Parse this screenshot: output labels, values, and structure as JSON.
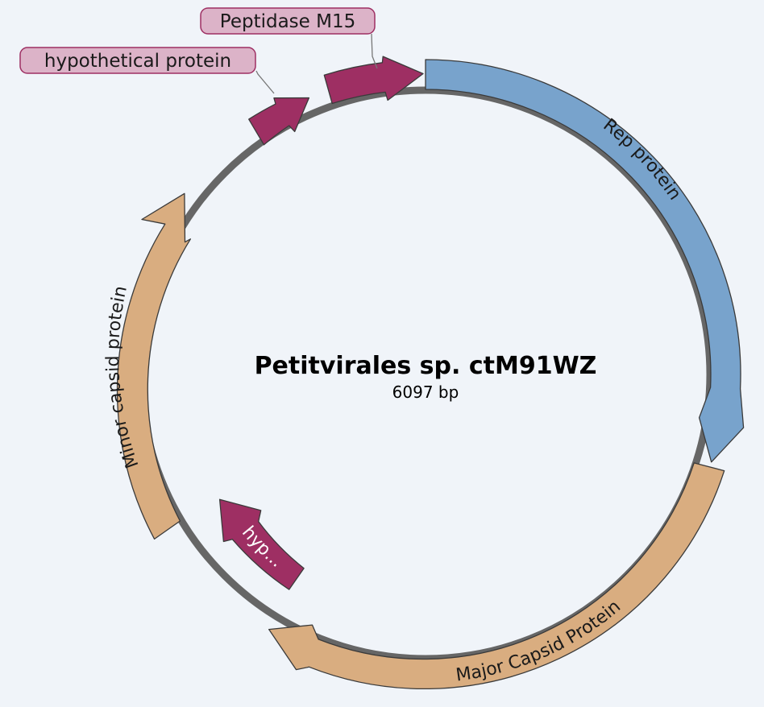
{
  "plasmid": {
    "name": "Petitvirales sp. ctM91WZ",
    "length_label": "6097 bp"
  },
  "colors": {
    "background": "#f0f4f9",
    "backbone": "#666666",
    "rep": "#78a3cc",
    "capsid": "#d9ad80",
    "hypothetical": "#9e2f63",
    "callout_fill": "#dcb3c8",
    "callout_stroke": "#9e2f63"
  },
  "features": [
    {
      "id": "rep",
      "label": "Rep protein",
      "color": "rep"
    },
    {
      "id": "major-capsid",
      "label": "Major Capsid Protein",
      "color": "capsid"
    },
    {
      "id": "minor-capsid",
      "label": "Minor capsid protein",
      "color": "capsid"
    },
    {
      "id": "hyp-inner",
      "label": "hyp...",
      "color": "hypothetical"
    },
    {
      "id": "hyp-outer",
      "label": "hypothetical protein",
      "color": "hypothetical"
    },
    {
      "id": "peptidase",
      "label": "Peptidase M15",
      "color": "hypothetical"
    }
  ]
}
